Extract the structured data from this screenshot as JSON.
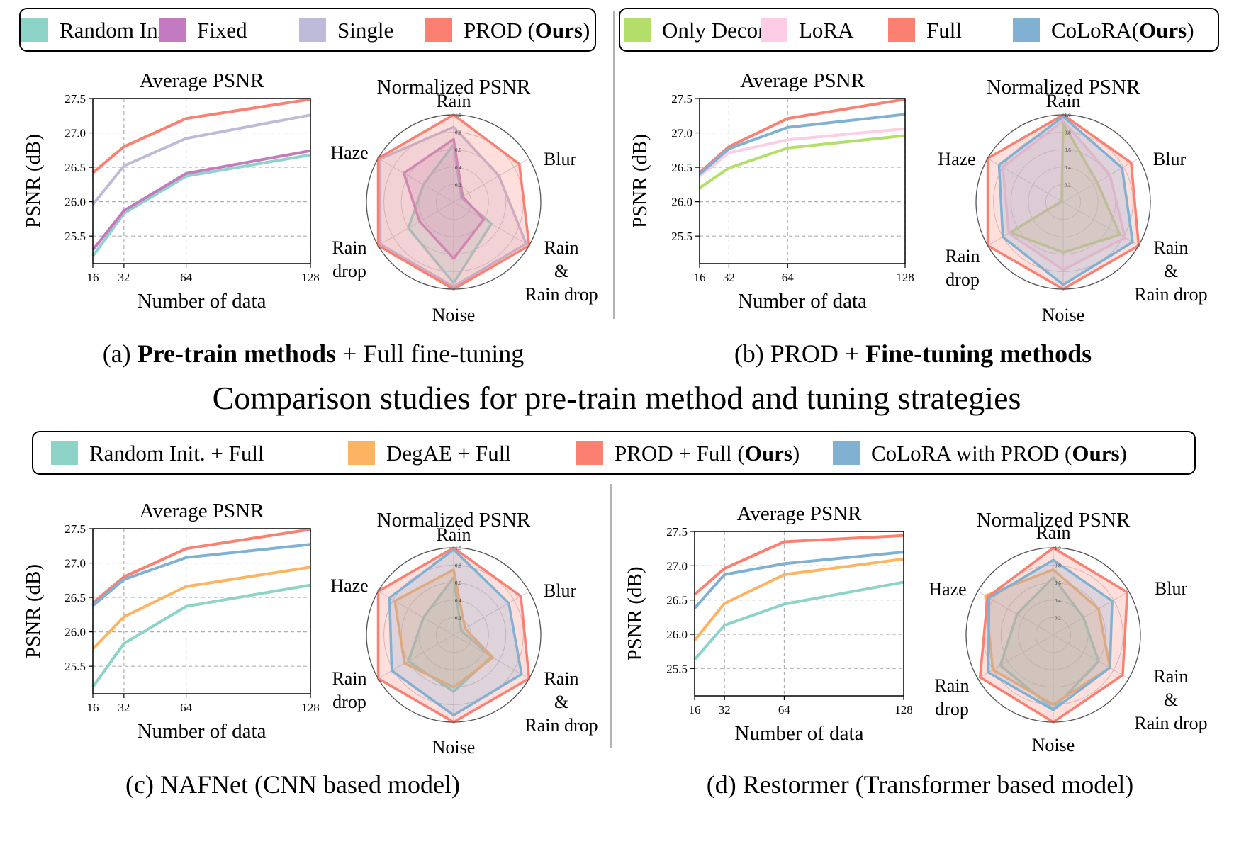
{
  "figure": {
    "main_title": "Comparison studies for pre-train method and tuning strategies",
    "legend_top_left": [
      {
        "label": "Random Init.",
        "color": "#8dd3c7"
      },
      {
        "label": "Fixed",
        "color": "#c47ac0"
      },
      {
        "label": "Single",
        "color": "#bebada"
      },
      {
        "label": "PROD (",
        "bold": "Ours",
        "tail": ")",
        "color": "#fb8072"
      }
    ],
    "legend_top_right": [
      {
        "label": "Only Deconv",
        "color": "#b3de69"
      },
      {
        "label": "LoRA",
        "color": "#fccde5"
      },
      {
        "label": "Full",
        "color": "#fb8072"
      },
      {
        "label": "CoLoRA(",
        "bold": "Ours",
        "tail": ")",
        "color": "#80b1d3"
      }
    ],
    "legend_bottom": [
      {
        "label": "Random Init. + Full",
        "color": "#8dd3c7"
      },
      {
        "label": "DegAE + Full",
        "color": "#fdb462"
      },
      {
        "label": "PROD + Full (",
        "bold": "Ours",
        "tail": ")",
        "color": "#fb8072"
      },
      {
        "label": "CoLoRA with PROD (",
        "bold": "Ours",
        "tail": ")",
        "color": "#80b1d3"
      }
    ],
    "captions": {
      "a": {
        "prefix": "(a) ",
        "bold": "Pre-train methods",
        "tail": " + Full fine-tuning"
      },
      "b": {
        "prefix": "(b) PROD + ",
        "bold": "Fine-tuning methods",
        "tail": ""
      },
      "c": {
        "prefix": "(c) NAFNet (CNN based model)",
        "bold": "",
        "tail": ""
      },
      "d": {
        "prefix": "(d)  Restormer (Transformer based model)",
        "bold": "",
        "tail": ""
      }
    }
  },
  "chart_data": [
    {
      "id": "a-line",
      "type": "line",
      "title": "Average PSNR",
      "xlabel": "Number of data",
      "ylabel": "PSNR (dB)",
      "x": [
        16,
        32,
        64,
        128
      ],
      "xticks": [
        "16",
        "32",
        "64",
        "128"
      ],
      "xlim": [
        16,
        128
      ],
      "yticks": [
        "25.5",
        "26.0",
        "26.5",
        "27.0",
        "27.5"
      ],
      "ylim": [
        25.1,
        27.5
      ],
      "grid": true,
      "series": [
        {
          "name": "Random Init.",
          "color": "#8dd3c7",
          "values": [
            25.21,
            25.83,
            26.37,
            26.68
          ]
        },
        {
          "name": "Fixed",
          "color": "#c47ac0",
          "values": [
            25.3,
            25.87,
            26.41,
            26.74
          ]
        },
        {
          "name": "Single",
          "color": "#bebada",
          "values": [
            25.96,
            26.52,
            26.92,
            27.26
          ]
        },
        {
          "name": "PROD (Ours)",
          "color": "#fb8072",
          "values": [
            26.42,
            26.8,
            27.21,
            27.49
          ]
        }
      ]
    },
    {
      "id": "a-radar",
      "type": "radar",
      "title": "Normalized PSNR",
      "axes": [
        "Rain",
        "Blur",
        "Rain\n&\nRain drop",
        "Noise",
        "Rain\ndrop",
        "Haze"
      ],
      "rticks": [
        "0.2",
        "0.4",
        "0.6",
        "0.8",
        "1.0"
      ],
      "rlim": [
        0,
        1
      ],
      "series": [
        {
          "name": "Random Init.",
          "color": "#8dd3c7",
          "values": [
            0.66,
            0.1,
            0.5,
            0.93,
            0.6,
            0.4
          ]
        },
        {
          "name": "Fixed",
          "color": "#c47ac0",
          "values": [
            0.72,
            0.12,
            0.4,
            0.65,
            0.45,
            0.66
          ]
        },
        {
          "name": "Single",
          "color": "#bebada",
          "values": [
            0.86,
            0.6,
            0.96,
            0.97,
            0.97,
            0.98
          ]
        },
        {
          "name": "PROD (Ours)",
          "color": "#fb8072",
          "values": [
            1.0,
            0.87,
            1.0,
            1.0,
            1.0,
            1.0
          ]
        }
      ]
    },
    {
      "id": "b-line",
      "type": "line",
      "title": "Average PSNR",
      "xlabel": "Number of data",
      "ylabel": "PSNR (dB)",
      "x": [
        16,
        32,
        64,
        128
      ],
      "xticks": [
        "16",
        "32",
        "64",
        "128"
      ],
      "xlim": [
        16,
        128
      ],
      "yticks": [
        "25.5",
        "26.0",
        "26.5",
        "27.0",
        "27.5"
      ],
      "ylim": [
        25.1,
        27.5
      ],
      "grid": true,
      "series": [
        {
          "name": "Only Deconv",
          "color": "#b3de69",
          "values": [
            26.2,
            26.49,
            26.78,
            26.96
          ]
        },
        {
          "name": "LoRA",
          "color": "#fccde5",
          "values": [
            26.37,
            26.71,
            26.9,
            27.06
          ]
        },
        {
          "name": "Full",
          "color": "#fb8072",
          "values": [
            26.42,
            26.8,
            27.21,
            27.49
          ]
        },
        {
          "name": "CoLoRA(Ours)",
          "color": "#80b1d3",
          "values": [
            26.4,
            26.77,
            27.08,
            27.27
          ]
        }
      ]
    },
    {
      "id": "b-radar",
      "type": "radar",
      "title": "Normalized PSNR",
      "axes": [
        "Rain",
        "Blur",
        "Rain\n&\nRain drop",
        "Noise",
        "Rain\ndrop",
        "Haze"
      ],
      "rticks": [
        "0.2",
        "0.4",
        "0.6",
        "0.8",
        "1.0"
      ],
      "rlim": [
        0,
        1
      ],
      "series": [
        {
          "name": "Only Deconv",
          "color": "#b3de69",
          "values": [
            0.9,
            0.45,
            0.75,
            0.58,
            0.7,
            0.02
          ]
        },
        {
          "name": "LoRA",
          "color": "#fccde5",
          "values": [
            0.93,
            0.62,
            0.82,
            0.78,
            0.72,
            0.8
          ]
        },
        {
          "name": "Full",
          "color": "#fb8072",
          "values": [
            1.0,
            0.9,
            1.0,
            1.0,
            1.0,
            1.0
          ]
        },
        {
          "name": "CoLoRA(Ours)",
          "color": "#80b1d3",
          "values": [
            0.98,
            0.78,
            0.92,
            0.95,
            0.8,
            0.85
          ]
        }
      ]
    },
    {
      "id": "c-line",
      "type": "line",
      "title": "Average PSNR",
      "xlabel": "Number of data",
      "ylabel": "PSNR (dB)",
      "x": [
        16,
        32,
        64,
        128
      ],
      "xticks": [
        "16",
        "32",
        "64",
        "128"
      ],
      "xlim": [
        16,
        128
      ],
      "yticks": [
        "25.5",
        "26.0",
        "26.5",
        "27.0",
        "27.5"
      ],
      "ylim": [
        25.1,
        27.5
      ],
      "grid": true,
      "series": [
        {
          "name": "Random Init. + Full",
          "color": "#8dd3c7",
          "values": [
            25.2,
            25.83,
            26.37,
            26.68
          ]
        },
        {
          "name": "DegAE + Full",
          "color": "#fdb462",
          "values": [
            25.75,
            26.22,
            26.66,
            26.94
          ]
        },
        {
          "name": "PROD + Full (Ours)",
          "color": "#fb8072",
          "values": [
            26.42,
            26.8,
            27.21,
            27.49
          ]
        },
        {
          "name": "CoLoRA with PROD (Ours)",
          "color": "#80b1d3",
          "values": [
            26.38,
            26.76,
            27.08,
            27.27
          ]
        }
      ]
    },
    {
      "id": "c-radar",
      "type": "radar",
      "title": "Normalized PSNR",
      "axes": [
        "Rain",
        "Blur",
        "Rain\n&\nRain drop",
        "Noise",
        "Rain\ndrop",
        "Haze"
      ],
      "rticks": [
        "0.2",
        "0.4",
        "0.6",
        "0.8",
        "1.0"
      ],
      "rlim": [
        0,
        1
      ],
      "series": [
        {
          "name": "Random Init. + Full",
          "color": "#8dd3c7",
          "values": [
            0.66,
            0.1,
            0.5,
            0.65,
            0.6,
            0.4
          ]
        },
        {
          "name": "DegAE + Full",
          "color": "#fdb462",
          "values": [
            0.75,
            0.15,
            0.52,
            0.6,
            0.65,
            0.78
          ]
        },
        {
          "name": "PROD + Full (Ours)",
          "color": "#fb8072",
          "values": [
            1.0,
            0.89,
            1.0,
            1.0,
            1.0,
            1.0
          ]
        },
        {
          "name": "CoLoRA with PROD (Ours)",
          "color": "#80b1d3",
          "values": [
            0.98,
            0.73,
            0.9,
            0.92,
            0.82,
            0.85
          ]
        }
      ]
    },
    {
      "id": "d-line",
      "type": "line",
      "title": "Average PSNR",
      "xlabel": "Number of data",
      "ylabel": "PSNR (dB)",
      "x": [
        16,
        32,
        64,
        128
      ],
      "xticks": [
        "16",
        "32",
        "64",
        "128"
      ],
      "xlim": [
        16,
        128
      ],
      "yticks": [
        "25.5",
        "26.0",
        "26.5",
        "27.0",
        "27.5"
      ],
      "ylim": [
        25.1,
        27.5
      ],
      "grid": true,
      "series": [
        {
          "name": "Random Init. + Full",
          "color": "#8dd3c7",
          "values": [
            25.63,
            26.13,
            26.44,
            26.76
          ]
        },
        {
          "name": "DegAE + Full",
          "color": "#fdb462",
          "values": [
            25.91,
            26.45,
            26.87,
            27.1
          ]
        },
        {
          "name": "PROD + Full (Ours)",
          "color": "#fb8072",
          "values": [
            26.58,
            26.96,
            27.35,
            27.44
          ]
        },
        {
          "name": "CoLoRA with PROD (Ours)",
          "color": "#80b1d3",
          "values": [
            26.38,
            26.87,
            27.03,
            27.2
          ]
        }
      ]
    },
    {
      "id": "d-radar",
      "type": "radar",
      "title": "Normalized PSNR",
      "axes": [
        "Rain",
        "Blur",
        "Rain\n&\nRain drop",
        "Noise",
        "Rain\ndrop",
        "Haze"
      ],
      "rticks": [
        "0.2",
        "0.4",
        "0.6",
        "0.8",
        "1.0"
      ],
      "rlim": [
        0,
        1
      ],
      "series": [
        {
          "name": "Random Init. + Full",
          "color": "#8dd3c7",
          "values": [
            0.66,
            0.4,
            0.6,
            0.85,
            0.7,
            0.48
          ]
        },
        {
          "name": "DegAE + Full",
          "color": "#fdb462",
          "values": [
            0.75,
            0.6,
            0.75,
            0.8,
            0.8,
            0.9
          ]
        },
        {
          "name": "PROD + Full (Ours)",
          "color": "#fb8072",
          "values": [
            1.0,
            0.98,
            0.92,
            1.0,
            0.97,
            0.87
          ]
        },
        {
          "name": "CoLoRA with PROD (Ours)",
          "color": "#80b1d3",
          "values": [
            0.86,
            0.78,
            0.75,
            0.86,
            0.86,
            0.85
          ]
        }
      ]
    }
  ]
}
